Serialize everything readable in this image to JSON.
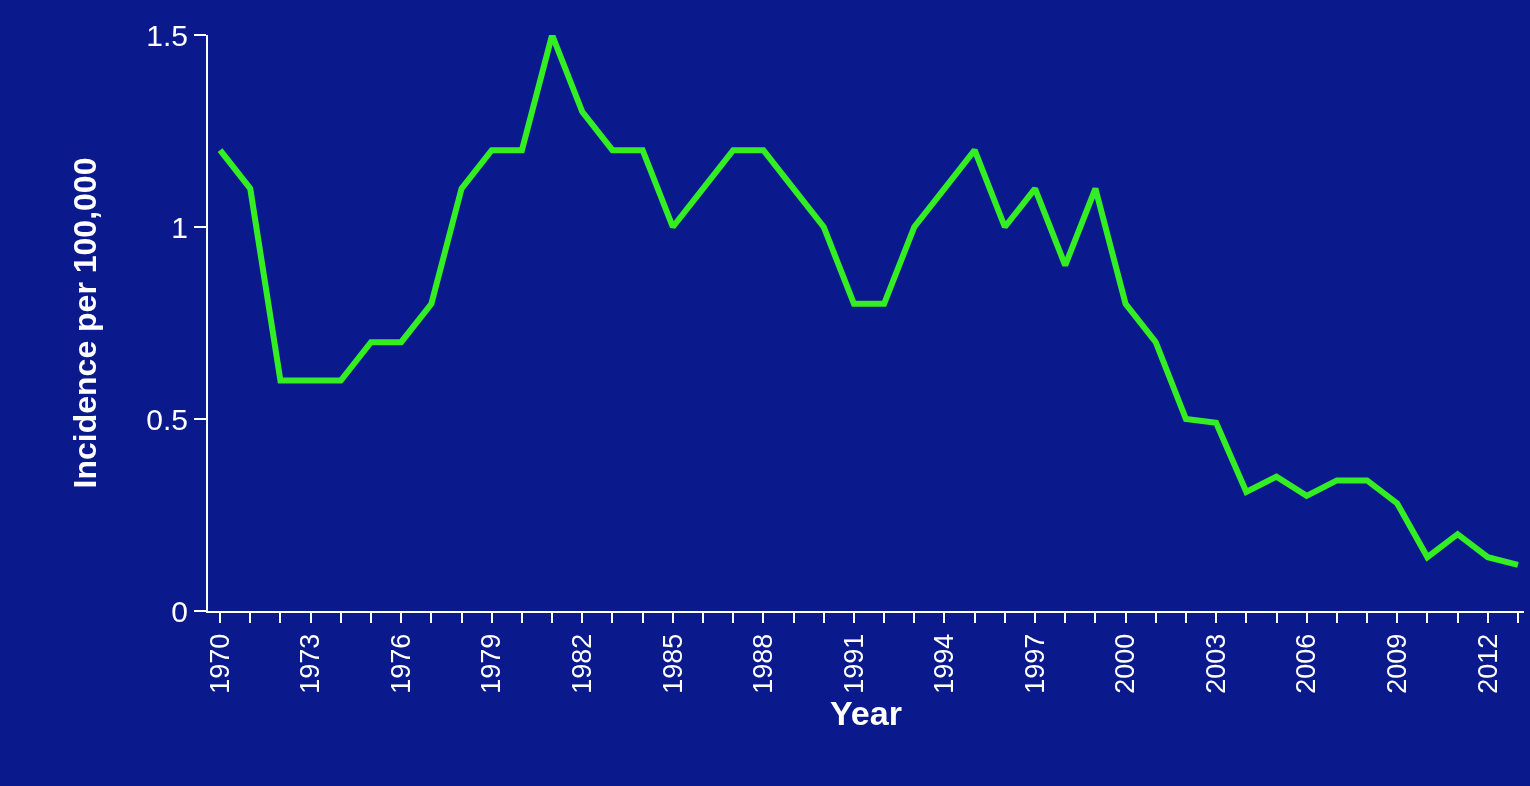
{
  "chart_data": {
    "type": "line",
    "xlabel": "Year",
    "ylabel": "Incidence per 100,000",
    "x": [
      1970,
      1971,
      1972,
      1973,
      1974,
      1975,
      1976,
      1977,
      1978,
      1979,
      1980,
      1981,
      1982,
      1983,
      1984,
      1985,
      1986,
      1987,
      1988,
      1989,
      1990,
      1991,
      1992,
      1993,
      1994,
      1995,
      1996,
      1997,
      1998,
      1999,
      2000,
      2001,
      2002,
      2003,
      2004,
      2005,
      2006,
      2007,
      2008,
      2009,
      2010,
      2011,
      2012,
      2013
    ],
    "series": [
      {
        "color": "#33ee22",
        "values": [
          1.2,
          1.1,
          0.6,
          0.6,
          0.6,
          0.7,
          0.7,
          0.8,
          1.1,
          1.2,
          1.2,
          1.5,
          1.3,
          1.2,
          1.2,
          1.0,
          1.1,
          1.2,
          1.2,
          1.1,
          1.0,
          0.8,
          0.8,
          1.0,
          1.1,
          1.2,
          1.0,
          1.1,
          0.9,
          1.1,
          0.8,
          0.7,
          0.5,
          0.49,
          0.31,
          0.35,
          0.3,
          0.34,
          0.34,
          0.28,
          0.14,
          0.2,
          0.14,
          0.12
        ]
      }
    ],
    "xlim": [
      1969.6,
      2013.2
    ],
    "xticks": [
      1970,
      {
        "value": 1971,
        "label": null
      },
      {
        "value": 1972,
        "label": null
      },
      1973,
      {
        "value": 1974,
        "label": null
      },
      {
        "value": 1975,
        "label": null
      },
      1976,
      {
        "value": 1977,
        "label": null
      },
      {
        "value": 1978,
        "label": null
      },
      1979,
      {
        "value": 1980,
        "label": null
      },
      {
        "value": 1981,
        "label": null
      },
      1982,
      {
        "value": 1983,
        "label": null
      },
      {
        "value": 1984,
        "label": null
      },
      1985,
      {
        "value": 1986,
        "label": null
      },
      {
        "value": 1987,
        "label": null
      },
      1988,
      {
        "value": 1989,
        "label": null
      },
      {
        "value": 1990,
        "label": null
      },
      1991,
      {
        "value": 1992,
        "label": null
      },
      {
        "value": 1993,
        "label": null
      },
      1994,
      {
        "value": 1995,
        "label": null
      },
      {
        "value": 1996,
        "label": null
      },
      1997,
      {
        "value": 1998,
        "label": null
      },
      {
        "value": 1999,
        "label": null
      },
      2000,
      {
        "value": 2001,
        "label": null
      },
      {
        "value": 2002,
        "label": null
      },
      2003,
      {
        "value": 2004,
        "label": null
      },
      {
        "value": 2005,
        "label": null
      },
      2006,
      {
        "value": 2007,
        "label": null
      },
      {
        "value": 2008,
        "label": null
      },
      2009,
      {
        "value": 2010,
        "label": null
      },
      {
        "value": 2011,
        "label": null
      },
      2012,
      {
        "value": 2013,
        "label": null
      }
    ],
    "ylim": [
      0,
      1.5
    ],
    "yticks": [
      0,
      0.5,
      1,
      1.5
    ],
    "grid": false,
    "marker": "none",
    "line_style": "solid"
  }
}
